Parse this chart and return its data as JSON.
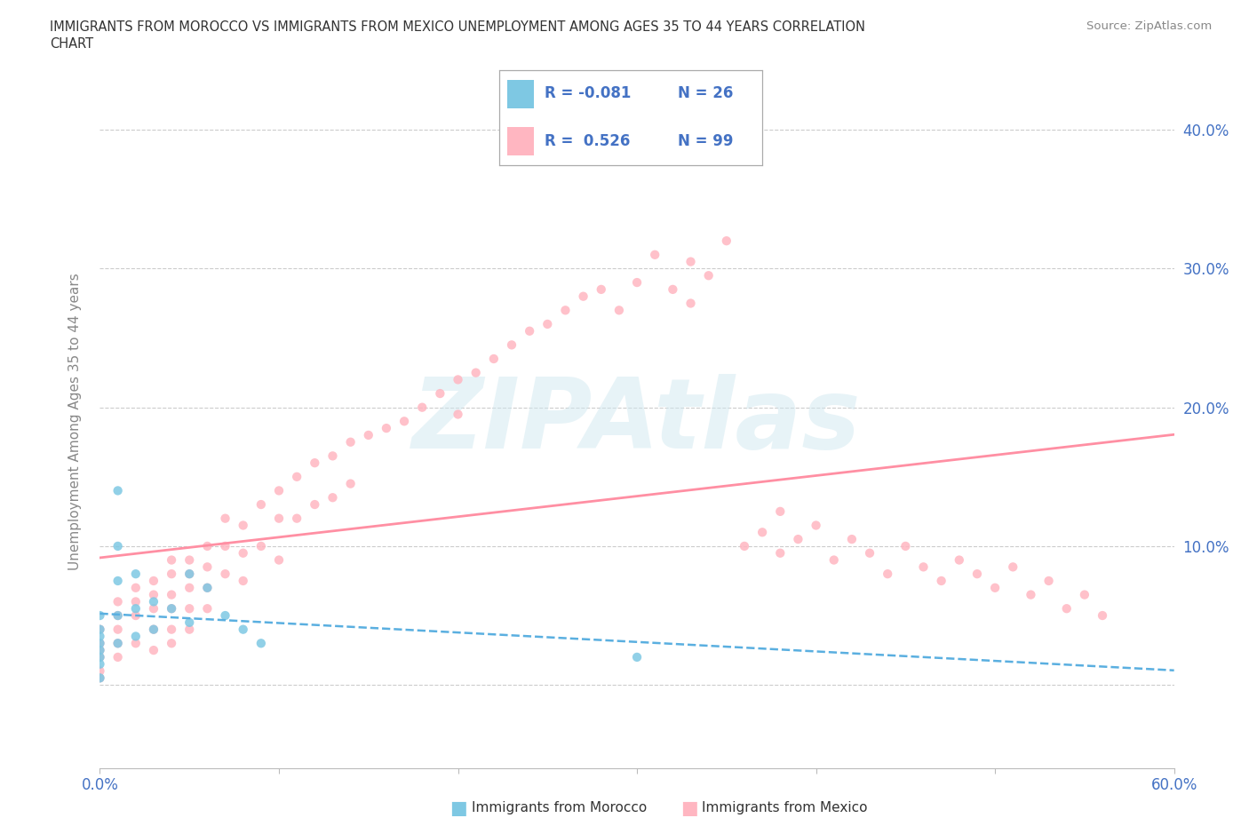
{
  "title_line1": "IMMIGRANTS FROM MOROCCO VS IMMIGRANTS FROM MEXICO UNEMPLOYMENT AMONG AGES 35 TO 44 YEARS CORRELATION",
  "title_line2": "CHART",
  "source_text": "Source: ZipAtlas.com",
  "ylabel": "Unemployment Among Ages 35 to 44 years",
  "xlim": [
    0.0,
    0.6
  ],
  "ylim": [
    -0.06,
    0.44
  ],
  "yticks": [
    0.0,
    0.1,
    0.2,
    0.3,
    0.4
  ],
  "xticks": [
    0.0,
    0.1,
    0.2,
    0.3,
    0.4,
    0.5,
    0.6
  ],
  "morocco_color": "#7ec8e3",
  "mexico_color": "#ffb6c1",
  "morocco_line_color": "#5aafe0",
  "mexico_line_color": "#ff8fa3",
  "morocco_R": -0.081,
  "morocco_N": 26,
  "mexico_R": 0.526,
  "mexico_N": 99,
  "watermark": "ZIPAtlas",
  "background_color": "#ffffff",
  "grid_color": "#cccccc",
  "tick_color": "#4472c4",
  "legend_label_morocco": "R = -0.081   N = 26",
  "legend_label_mexico": "R =  0.526   N = 99",
  "bottom_legend_morocco": "Immigrants from Morocco",
  "bottom_legend_mexico": "Immigrants from Mexico",
  "morocco_x": [
    0.0,
    0.0,
    0.0,
    0.0,
    0.0,
    0.0,
    0.0,
    0.0,
    0.01,
    0.01,
    0.01,
    0.01,
    0.01,
    0.02,
    0.02,
    0.02,
    0.03,
    0.03,
    0.04,
    0.05,
    0.05,
    0.06,
    0.07,
    0.08,
    0.09,
    0.3
  ],
  "morocco_y": [
    0.05,
    0.04,
    0.035,
    0.03,
    0.025,
    0.02,
    0.015,
    0.005,
    0.14,
    0.1,
    0.075,
    0.05,
    0.03,
    0.08,
    0.055,
    0.035,
    0.06,
    0.04,
    0.055,
    0.08,
    0.045,
    0.07,
    0.05,
    0.04,
    0.03,
    0.02
  ],
  "mexico_x": [
    0.0,
    0.0,
    0.0,
    0.0,
    0.0,
    0.0,
    0.01,
    0.01,
    0.01,
    0.01,
    0.01,
    0.02,
    0.02,
    0.02,
    0.02,
    0.03,
    0.03,
    0.03,
    0.03,
    0.03,
    0.04,
    0.04,
    0.04,
    0.04,
    0.04,
    0.04,
    0.05,
    0.05,
    0.05,
    0.05,
    0.05,
    0.06,
    0.06,
    0.06,
    0.06,
    0.07,
    0.07,
    0.07,
    0.08,
    0.08,
    0.08,
    0.09,
    0.09,
    0.1,
    0.1,
    0.1,
    0.11,
    0.11,
    0.12,
    0.12,
    0.13,
    0.13,
    0.14,
    0.14,
    0.15,
    0.16,
    0.17,
    0.18,
    0.19,
    0.2,
    0.2,
    0.21,
    0.22,
    0.23,
    0.24,
    0.25,
    0.26,
    0.27,
    0.28,
    0.29,
    0.3,
    0.31,
    0.32,
    0.33,
    0.33,
    0.34,
    0.35,
    0.36,
    0.37,
    0.38,
    0.38,
    0.39,
    0.4,
    0.41,
    0.42,
    0.43,
    0.44,
    0.45,
    0.46,
    0.47,
    0.48,
    0.49,
    0.5,
    0.51,
    0.52,
    0.53,
    0.54,
    0.55,
    0.56
  ],
  "mexico_y": [
    0.04,
    0.03,
    0.025,
    0.02,
    0.01,
    0.005,
    0.06,
    0.05,
    0.04,
    0.03,
    0.02,
    0.07,
    0.06,
    0.05,
    0.03,
    0.075,
    0.065,
    0.055,
    0.04,
    0.025,
    0.09,
    0.08,
    0.065,
    0.055,
    0.04,
    0.03,
    0.09,
    0.08,
    0.07,
    0.055,
    0.04,
    0.1,
    0.085,
    0.07,
    0.055,
    0.12,
    0.1,
    0.08,
    0.115,
    0.095,
    0.075,
    0.13,
    0.1,
    0.14,
    0.12,
    0.09,
    0.15,
    0.12,
    0.16,
    0.13,
    0.165,
    0.135,
    0.175,
    0.145,
    0.18,
    0.185,
    0.19,
    0.2,
    0.21,
    0.22,
    0.195,
    0.225,
    0.235,
    0.245,
    0.255,
    0.26,
    0.27,
    0.28,
    0.285,
    0.27,
    0.29,
    0.31,
    0.285,
    0.305,
    0.275,
    0.295,
    0.32,
    0.1,
    0.11,
    0.095,
    0.125,
    0.105,
    0.115,
    0.09,
    0.105,
    0.095,
    0.08,
    0.1,
    0.085,
    0.075,
    0.09,
    0.08,
    0.07,
    0.085,
    0.065,
    0.075,
    0.055,
    0.065,
    0.05
  ]
}
